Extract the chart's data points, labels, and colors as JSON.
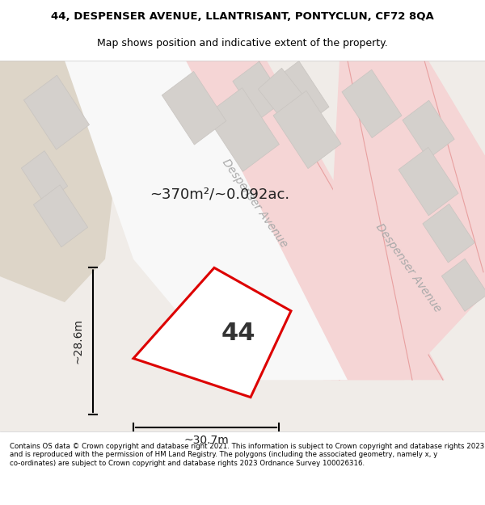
{
  "title_line1": "44, DESPENSER AVENUE, LLANTRISANT, PONTYCLUN, CF72 8QA",
  "title_line2": "Map shows position and indicative extent of the property.",
  "area_text": "~370m²/~0.092ac.",
  "width_text": "~30.7m",
  "height_text": "~28.6m",
  "house_number": "44",
  "footer_text": "Contains OS data © Crown copyright and database right 2021. This information is subject to Crown copyright and database rights 2023 and is reproduced with the permission of HM Land Registry. The polygons (including the associated geometry, namely x, y co-ordinates) are subject to Crown copyright and database rights 2023 Ordnance Survey 100026316.",
  "bg_color": "#f5f0eb",
  "map_bg": "#f0ece8",
  "plot_fill": "#ffffff",
  "road_color": "#f5b8b8",
  "road_line_color": "#e87878",
  "block_color": "#d8d8d8",
  "block_edge": "#cccccc",
  "highlight_color": "#ff0000",
  "highlight_fill": "#ffffff",
  "street_label1": "Despenser Avenue",
  "street_label2": "Despenser Avenue",
  "figwidth": 6.0,
  "figheight": 6.25
}
